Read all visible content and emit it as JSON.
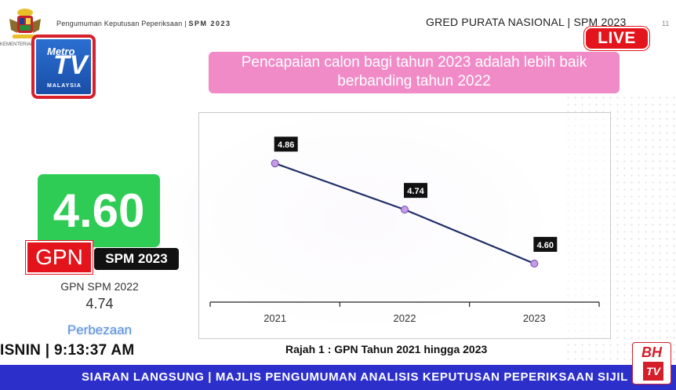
{
  "header": {
    "org_caption": "KEMENTERIAN P",
    "left_title": "Pengumuman Keputusan Peperiksaan",
    "left_suffix": "SPM 2023",
    "right_title": "GRED PURATA NASIONAL | SPM 2023",
    "page_number": "11"
  },
  "live_badge": "LIVE",
  "channel_logo": {
    "brand": "Metro",
    "tv": "TV",
    "country": "MALAYSIA"
  },
  "banner": {
    "line1": "Pencapaian calon bagi tahun 2023 adalah lebih baik",
    "line2": "berbanding tahun 2022"
  },
  "score_panel": {
    "value": "4.60",
    "gpn_label": "GPN",
    "spm_label": "SPM 2023",
    "prev_label": "GPN SPM 2022",
    "prev_value": "4.74",
    "diff_label": "Perbezaan"
  },
  "clock": "ISNIN | 9:13:37 AM",
  "chart_caption": "Rajah 1 : GPN Tahun 2021 hingga 2023",
  "ticker": "SIARAN LANGSUNG | MAJLIS PENGUMUMAN ANALISIS KEPUTUSAN PEPERIKSAAN SIJIL PEL",
  "bh_logo": {
    "text": "BH",
    "tv": "TV"
  },
  "colors": {
    "accent_red": "#e3141b",
    "score_green": "#2fcc55",
    "banner_pink": "#f08bc8",
    "ticker_blue": "#2d2fcb",
    "line_navy": "#1f2f66",
    "marker_purple": "#c79be8"
  },
  "chart_data": {
    "type": "line",
    "title": "",
    "xlabel": "",
    "ylabel": "",
    "categories": [
      "2021",
      "2022",
      "2023"
    ],
    "series": [
      {
        "values": [
          4.86,
          4.74,
          4.6
        ]
      }
    ],
    "data_labels": [
      "4.86",
      "4.74",
      "4.60"
    ],
    "ylim": [
      4.5,
      4.95
    ],
    "grid": false,
    "legend": "none"
  }
}
